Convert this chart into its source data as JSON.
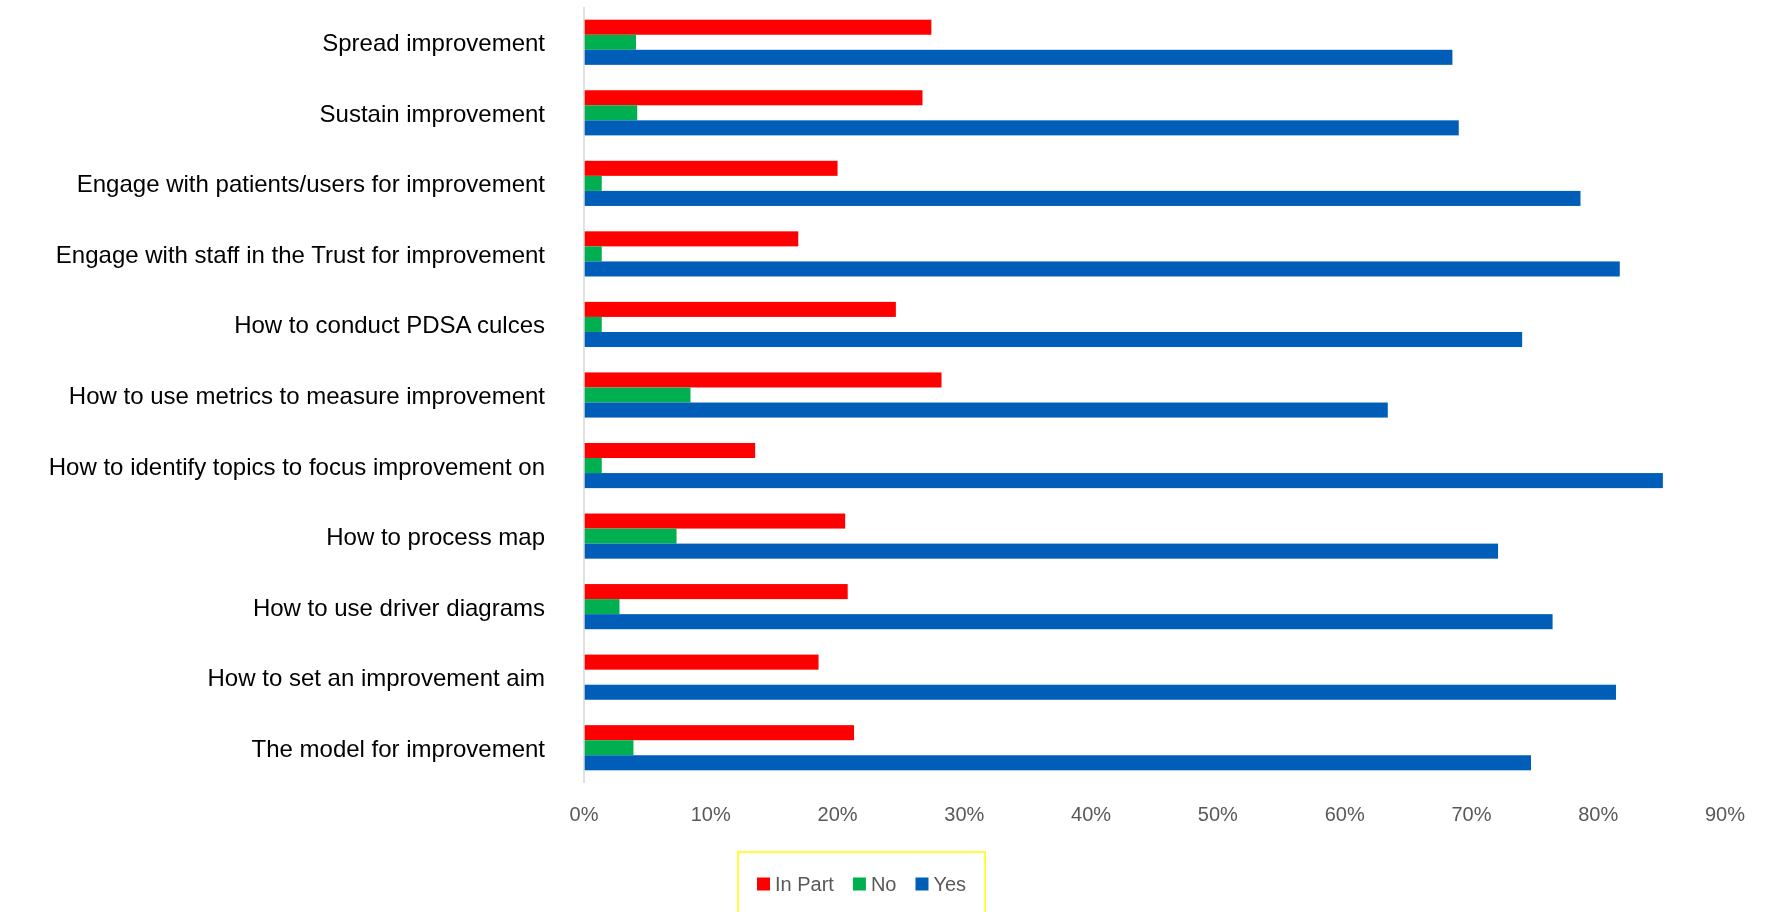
{
  "chart_data": {
    "type": "bar",
    "orientation": "horizontal",
    "categories": [
      "Spread improvement",
      "Sustain improvement",
      "Engage with patients/users for improvement",
      "Engage with staff in the Trust for improvement",
      "How to conduct PDSA culces",
      "How to use metrics to measure improvement",
      "How to identify topics to focus improvement on",
      "How to process map",
      "How to use driver diagrams",
      "How to set an improvement aim",
      "The model for improvement"
    ],
    "series": [
      {
        "name": "In Part",
        "color": "#ff0000",
        "values": [
          27.4,
          26.7,
          20.0,
          16.9,
          24.6,
          28.2,
          13.5,
          20.6,
          20.8,
          18.5,
          21.3
        ]
      },
      {
        "name": "No",
        "color": "#00b050",
        "values": [
          4.1,
          4.2,
          1.4,
          1.4,
          1.4,
          8.4,
          1.4,
          7.3,
          2.8,
          null,
          3.9
        ]
      },
      {
        "name": "Yes",
        "color": "#005eb8",
        "values": [
          68.5,
          69.0,
          78.6,
          81.7,
          74.0,
          63.4,
          85.1,
          72.1,
          76.4,
          81.4,
          74.7
        ]
      }
    ],
    "xlim": [
      0,
      90
    ],
    "xticks": [
      {
        "value": 0,
        "label": "0%"
      },
      {
        "value": 10,
        "label": "10%"
      },
      {
        "value": 20,
        "label": "20%"
      },
      {
        "value": 30,
        "label": "30%"
      },
      {
        "value": 40,
        "label": "40%"
      },
      {
        "value": 50,
        "label": "50%"
      },
      {
        "value": 60,
        "label": "60%"
      },
      {
        "value": 70,
        "label": "70%"
      },
      {
        "value": 80,
        "label": "80%"
      },
      {
        "value": 90,
        "label": "90%"
      }
    ],
    "grid": false,
    "legend": "bottom"
  }
}
